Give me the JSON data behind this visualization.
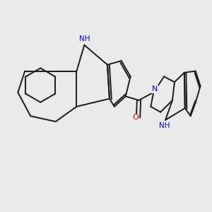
{
  "background_color": "#eaeaea",
  "bond_color": "#1a1a1a",
  "bond_width": 1.4,
  "N_color": "#0000cc",
  "O_color": "#cc0000",
  "figsize": [
    3.0,
    3.0
  ],
  "dpi": 100,
  "xlim": [
    0,
    10
  ],
  "ylim": [
    0,
    10
  ]
}
